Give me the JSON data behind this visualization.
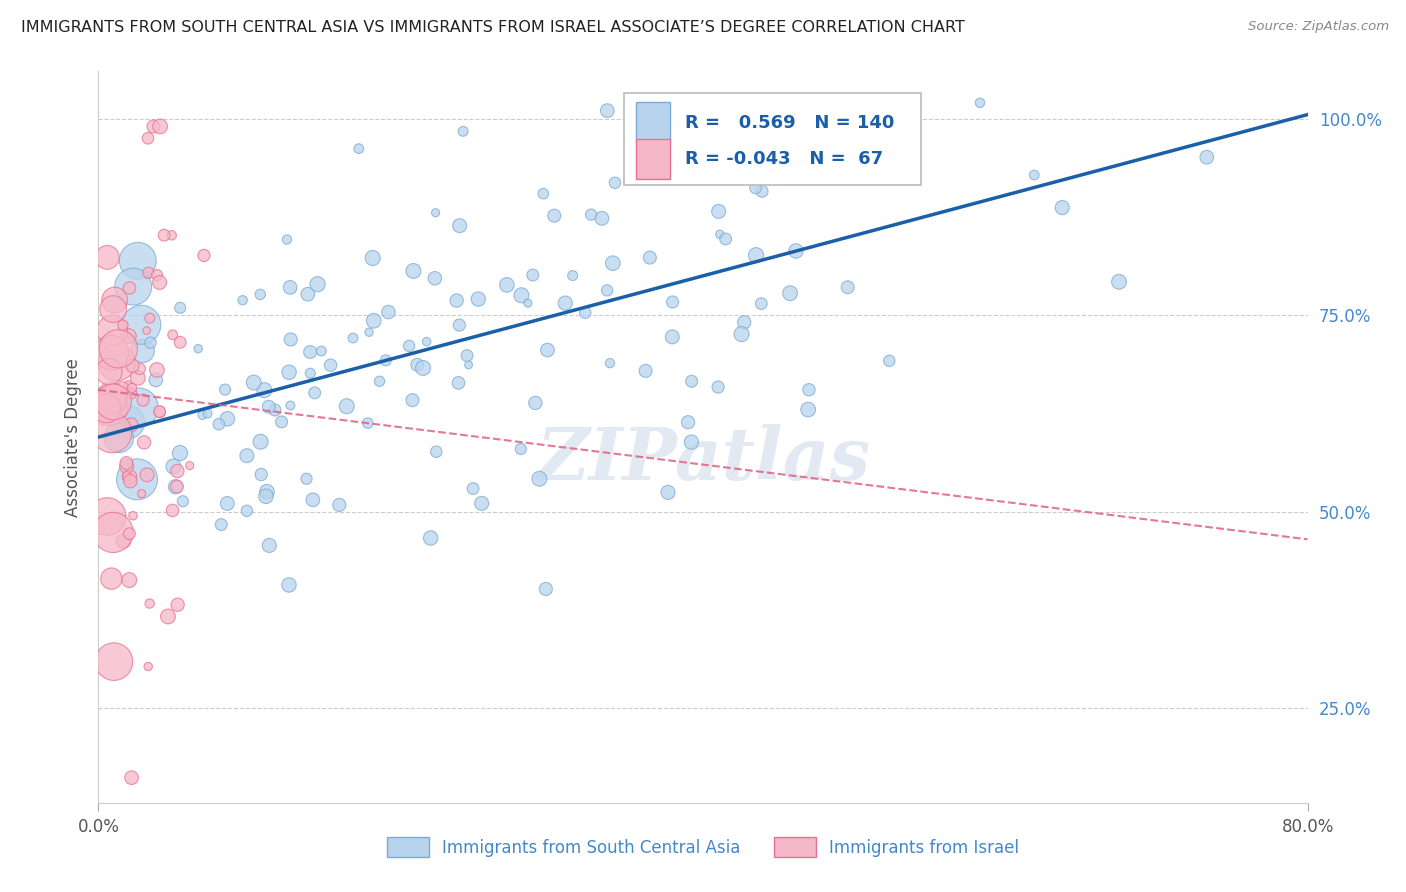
{
  "title": "IMMIGRANTS FROM SOUTH CENTRAL ASIA VS IMMIGRANTS FROM ISRAEL ASSOCIATE’S DEGREE CORRELATION CHART",
  "source": "Source: ZipAtlas.com",
  "ylabel": "Associate's Degree",
  "yticks": [
    "25.0%",
    "50.0%",
    "75.0%",
    "100.0%"
  ],
  "ytick_vals": [
    0.25,
    0.5,
    0.75,
    1.0
  ],
  "legend1_label": "Immigrants from South Central Asia",
  "legend2_label": "Immigrants from Israel",
  "R_blue": 0.569,
  "N_blue": 140,
  "R_pink": -0.043,
  "N_pink": 67,
  "color_blue": "#b8d4ed",
  "color_pink": "#f5b8c8",
  "color_blue_edge": "#7aaad4",
  "color_pink_edge": "#e87090",
  "trendline_blue": "#1a5fa8",
  "trendline_pink": "#e06080",
  "watermark": "ZIPatlas",
  "xlim": [
    0.0,
    0.8
  ],
  "ylim": [
    0.13,
    1.06
  ],
  "trendline_blue_x0": 0.0,
  "trendline_blue_y0": 0.595,
  "trendline_blue_x1": 0.8,
  "trendline_blue_y1": 1.005,
  "trendline_pink_x0": 0.0,
  "trendline_pink_y0": 0.655,
  "trendline_pink_x1": 0.8,
  "trendline_pink_y1": 0.465
}
